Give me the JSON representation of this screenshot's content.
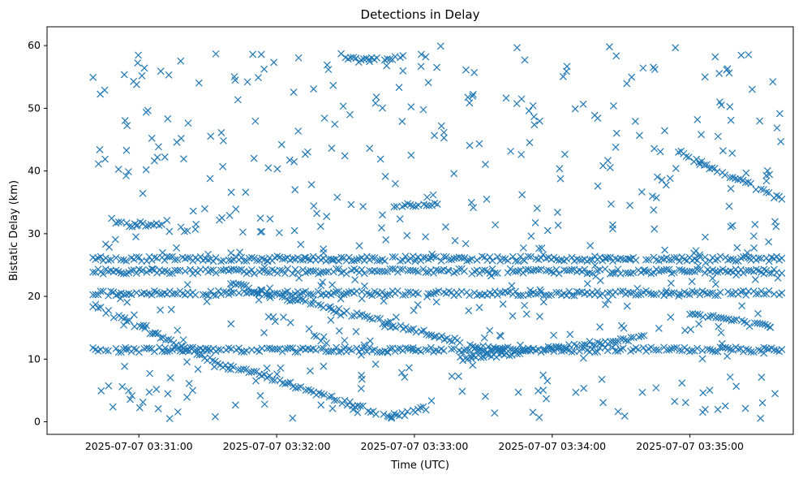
{
  "chart_data": {
    "type": "scatter",
    "title": "Detections in Delay",
    "xlabel": "Time (UTC)",
    "ylabel": "Bistatic Delay (km)",
    "marker": "x",
    "color": "#1f77b4",
    "xlim": [
      "2025-07-07 03:30:20",
      "2025-07-07 03:35:45"
    ],
    "ylim": [
      -2,
      63
    ],
    "xticks": [
      "2025-07-07 03:31:00",
      "2025-07-07 03:32:00",
      "2025-07-07 03:33:00",
      "2025-07-07 03:34:00",
      "2025-07-07 03:35:00"
    ],
    "yticks": [
      0,
      10,
      20,
      30,
      40,
      50,
      60
    ],
    "grid": false,
    "tracks": [
      {
        "t": [
          "03:30:40",
          "03:31:40"
        ],
        "y": [
          18.5,
          8.5
        ]
      },
      {
        "t": [
          "03:31:40",
          "03:32:50"
        ],
        "y": [
          9,
          0.8
        ]
      },
      {
        "t": [
          "03:32:50",
          "03:33:05"
        ],
        "y": [
          0.8,
          2.2
        ]
      },
      {
        "t": [
          "03:31:40",
          "03:33:40"
        ],
        "y": [
          22,
          11
        ]
      },
      {
        "t": [
          "03:33:20",
          "03:34:40"
        ],
        "y": [
          10,
          13.5
        ]
      },
      {
        "t": [
          "03:34:55",
          "03:35:40"
        ],
        "y": [
          43,
          35.5
        ]
      },
      {
        "t": [
          "03:35:00",
          "03:35:35"
        ],
        "y": [
          17.5,
          15
        ]
      },
      {
        "t": [
          "03:30:40",
          "03:35:40"
        ],
        "y": [
          26,
          26
        ]
      },
      {
        "t": [
          "03:30:40",
          "03:35:40"
        ],
        "y": [
          24,
          24
        ]
      },
      {
        "t": [
          "03:30:40",
          "03:35:40"
        ],
        "y": [
          11.5,
          11.5
        ]
      },
      {
        "t": [
          "03:30:40",
          "03:35:40"
        ],
        "y": [
          20.5,
          20.5
        ]
      },
      {
        "t": [
          "03:32:50",
          "03:33:10"
        ],
        "y": [
          34.5,
          34.5
        ]
      },
      {
        "t": [
          "03:32:30",
          "03:32:55"
        ],
        "y": [
          58,
          58
        ]
      },
      {
        "t": [
          "03:30:50",
          "03:31:10"
        ],
        "y": [
          31.5,
          31.5
        ]
      }
    ],
    "scatter_density": {
      "x_range": [
        "03:30:40",
        "03:35:40"
      ],
      "y_range": [
        0.5,
        60
      ],
      "points": 520
    }
  }
}
